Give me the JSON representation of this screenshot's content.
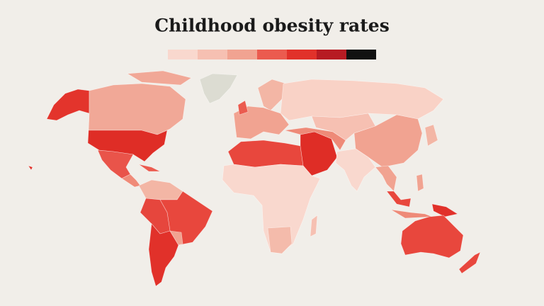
{
  "title": "Childhood obesity rates",
  "legend": {
    "colors": [
      "#f9d8ce",
      "#f6c0b2",
      "#f1a391",
      "#eb5b4f",
      "#e1312a",
      "#b71b23",
      "#111111"
    ]
  }
}
